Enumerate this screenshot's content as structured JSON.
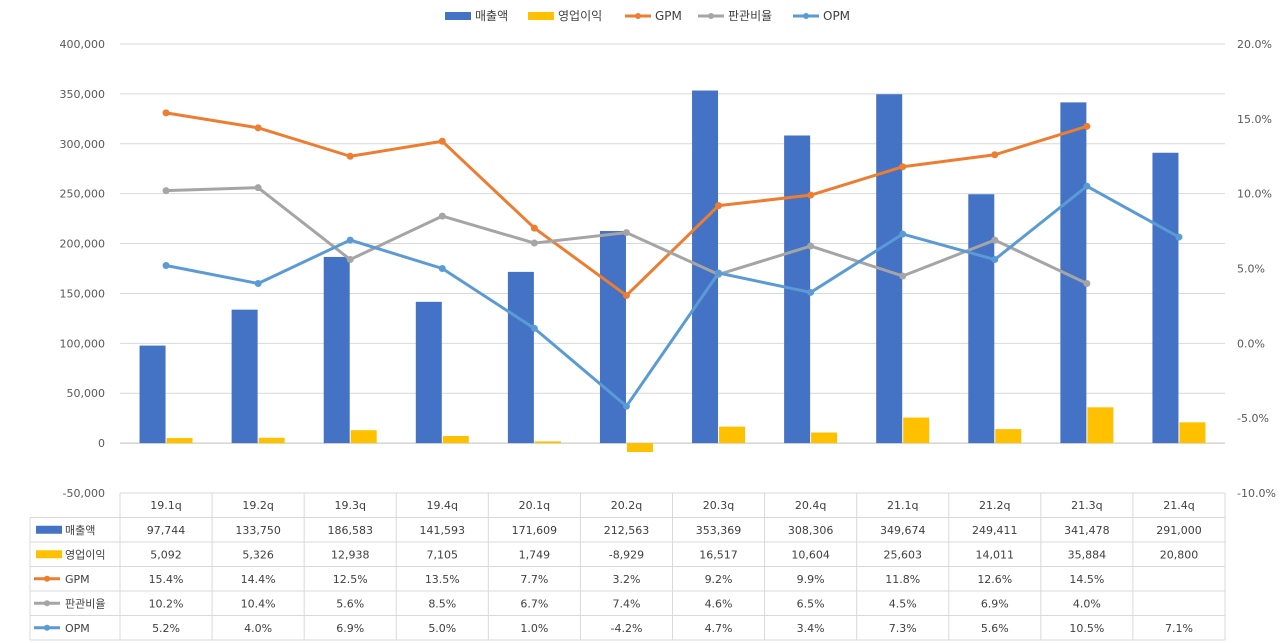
{
  "chart_data": {
    "type": "bar+line",
    "categories": [
      "19.1q",
      "19.2q",
      "19.3q",
      "19.4q",
      "20.1q",
      "20.2q",
      "20.3q",
      "20.4q",
      "21.1q",
      "21.2q",
      "21.3q",
      "21.4q"
    ],
    "bar_series": [
      {
        "name": "매출액",
        "color": "#4472C4",
        "values": [
          97744,
          133750,
          186583,
          141593,
          171609,
          212563,
          353369,
          308306,
          349674,
          249411,
          341478,
          291000
        ],
        "labels": [
          "97,744",
          "133,750",
          "186,583",
          "141,593",
          "171,609",
          "212,563",
          "353,369",
          "308,306",
          "349,674",
          "249,411",
          "341,478",
          "291,000"
        ]
      },
      {
        "name": "영업이익",
        "color": "#FFC000",
        "values": [
          5092,
          5326,
          12938,
          7105,
          1749,
          -8929,
          16517,
          10604,
          25603,
          14011,
          35884,
          20800
        ],
        "labels": [
          "5,092",
          "5,326",
          "12,938",
          "7,105",
          "1,749",
          "-8,929",
          "16,517",
          "10,604",
          "25,603",
          "14,011",
          "35,884",
          "20,800"
        ]
      }
    ],
    "line_series": [
      {
        "name": "GPM",
        "color": "#ED7D31",
        "values": [
          15.4,
          14.4,
          12.5,
          13.5,
          7.7,
          3.2,
          9.2,
          9.9,
          11.8,
          12.6,
          14.5,
          null
        ],
        "labels": [
          "15.4%",
          "14.4%",
          "12.5%",
          "13.5%",
          "7.7%",
          "3.2%",
          "9.2%",
          "9.9%",
          "11.8%",
          "12.6%",
          "14.5%",
          ""
        ]
      },
      {
        "name": "판관비율",
        "color": "#A5A5A5",
        "values": [
          10.2,
          10.4,
          5.6,
          8.5,
          6.7,
          7.4,
          4.6,
          6.5,
          4.5,
          6.9,
          4.0,
          null
        ],
        "labels": [
          "10.2%",
          "10.4%",
          "5.6%",
          "8.5%",
          "6.7%",
          "7.4%",
          "4.6%",
          "6.5%",
          "4.5%",
          "6.9%",
          "4.0%",
          ""
        ]
      },
      {
        "name": "OPM",
        "color": "#5B9BD5",
        "values": [
          5.2,
          4.0,
          6.9,
          5.0,
          1.0,
          -4.2,
          4.7,
          3.4,
          7.3,
          5.6,
          10.5,
          7.1
        ],
        "labels": [
          "5.2%",
          "4.0%",
          "6.9%",
          "5.0%",
          "1.0%",
          "-4.2%",
          "4.7%",
          "3.4%",
          "7.3%",
          "5.6%",
          "10.5%",
          "7.1%"
        ]
      }
    ],
    "y_left": {
      "min": -50000,
      "max": 400000,
      "step": 50000,
      "ticks": [
        "400,000",
        "350,000",
        "300,000",
        "250,000",
        "200,000",
        "150,000",
        "100,000",
        "50,000",
        "0",
        "-50,000"
      ]
    },
    "y_right": {
      "min": -10,
      "max": 20,
      "step": 5,
      "ticks": [
        "20.0%",
        "15.0%",
        "10.0%",
        "5.0%",
        "0.0%",
        "-5.0%",
        "-10.0%"
      ]
    },
    "legend_position": "top-center",
    "gridlines": true,
    "data_table": true
  }
}
